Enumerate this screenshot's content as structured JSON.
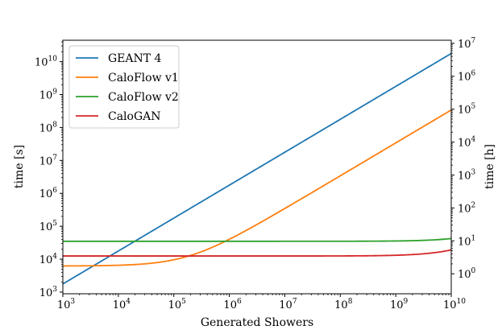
{
  "chart_data": {
    "type": "line",
    "title": "",
    "xlabel": "Generated Showers",
    "ylabel": "time [s]",
    "ylabel_right": "time [h]",
    "xscale": "log",
    "yscale": "log",
    "xlim_exp": [
      3,
      10
    ],
    "ylim_exp": [
      2.95,
      10.65
    ],
    "x_ticks": [
      {
        "base": "10",
        "exp": "3"
      },
      {
        "base": "10",
        "exp": "4"
      },
      {
        "base": "10",
        "exp": "5"
      },
      {
        "base": "10",
        "exp": "6"
      },
      {
        "base": "10",
        "exp": "7"
      },
      {
        "base": "10",
        "exp": "8"
      },
      {
        "base": "10",
        "exp": "9"
      },
      {
        "base": "10",
        "exp": "10"
      }
    ],
    "y_ticks": [
      {
        "base": "10",
        "exp": "3"
      },
      {
        "base": "10",
        "exp": "4"
      },
      {
        "base": "10",
        "exp": "5"
      },
      {
        "base": "10",
        "exp": "6"
      },
      {
        "base": "10",
        "exp": "7"
      },
      {
        "base": "10",
        "exp": "8"
      },
      {
        "base": "10",
        "exp": "9"
      },
      {
        "base": "10",
        "exp": "10"
      }
    ],
    "y2_ticks": [
      {
        "base": "10",
        "exp": "0"
      },
      {
        "base": "10",
        "exp": "1"
      },
      {
        "base": "10",
        "exp": "2"
      },
      {
        "base": "10",
        "exp": "3"
      },
      {
        "base": "10",
        "exp": "4"
      },
      {
        "base": "10",
        "exp": "5"
      },
      {
        "base": "10",
        "exp": "6"
      },
      {
        "base": "10",
        "exp": "7"
      }
    ],
    "legend_position": "top-left",
    "series": [
      {
        "name": "GEANT 4",
        "color": "#1f77b4",
        "model": "linear",
        "per_shower_s": 1.77,
        "setup_s": 0
      },
      {
        "name": "CaloFlow v1",
        "color": "#ff7f0e",
        "model": "linear",
        "per_shower_s": 0.034,
        "setup_s": 6200
      },
      {
        "name": "CaloFlow v2",
        "color": "#2ca02c",
        "model": "linear",
        "per_shower_s": 7.4e-07,
        "setup_s": 35000
      },
      {
        "name": "CaloGAN",
        "color": "#d62728",
        "model": "linear",
        "per_shower_s": 6.6e-07,
        "setup_s": 12500
      }
    ]
  }
}
